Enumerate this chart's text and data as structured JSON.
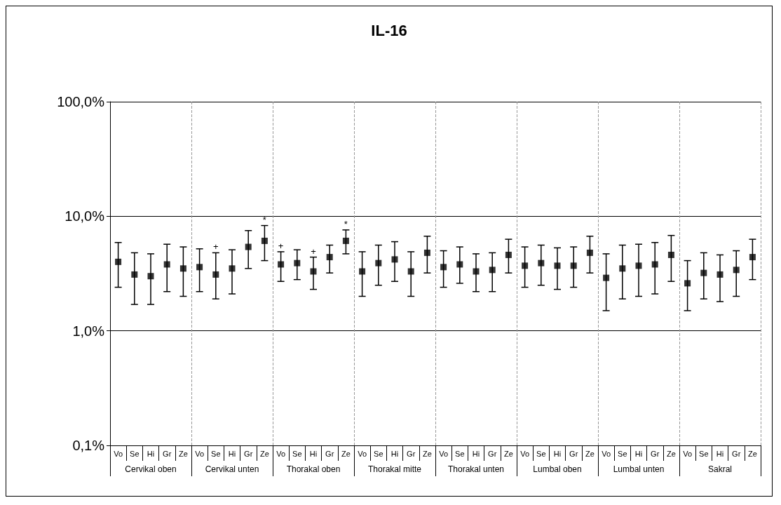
{
  "chart_data": {
    "type": "scatter",
    "title": "IL-16",
    "categories": [
      "Vo",
      "Se",
      "Hi",
      "Gr",
      "Ze",
      "Vo",
      "Se",
      "Hi",
      "Gr",
      "Ze",
      "Vo",
      "Se",
      "Hi",
      "Gr",
      "Ze",
      "Vo",
      "Se",
      "Hi",
      "Gr",
      "Ze",
      "Vo",
      "Se",
      "Hi",
      "Gr",
      "Ze",
      "Vo",
      "Se",
      "Hi",
      "Gr",
      "Ze",
      "Vo",
      "Se",
      "Hi",
      "Gr",
      "Ze",
      "Vo",
      "Se",
      "Hi",
      "Gr",
      "Ze"
    ],
    "annotations": [
      "Cervikal oben",
      "Cervikal unten",
      "Thorakal oben",
      "Thorakal mitte",
      "Thorakal unten",
      "Lumbal oben",
      "Lumbal unten",
      "Sakral"
    ],
    "series": [
      {
        "color": "#000000",
        "values": [
          4.0,
          3.1,
          3.0,
          3.8,
          3.5,
          3.6,
          3.1,
          3.5,
          5.4,
          6.1,
          3.8,
          3.9,
          3.3,
          4.4,
          6.1,
          3.3,
          3.9,
          4.2,
          3.3,
          4.8,
          3.6,
          3.8,
          3.3,
          3.4,
          4.6,
          3.7,
          3.9,
          3.7,
          3.7,
          4.8,
          2.9,
          3.5,
          3.7,
          3.8,
          4.6,
          2.6,
          3.2,
          3.1,
          3.4,
          4.4
        ],
        "errors": [
          [
            2.4,
            5.9
          ],
          [
            1.7,
            4.8
          ],
          [
            1.7,
            4.7
          ],
          [
            2.2,
            5.7
          ],
          [
            2.0,
            5.4
          ],
          [
            2.2,
            5.2
          ],
          [
            1.9,
            4.8
          ],
          [
            2.1,
            5.1
          ],
          [
            3.5,
            7.5
          ],
          [
            4.1,
            8.3
          ],
          [
            2.7,
            4.9
          ],
          [
            2.8,
            5.1
          ],
          [
            2.3,
            4.4
          ],
          [
            3.2,
            5.6
          ],
          [
            4.7,
            7.6
          ],
          [
            2.0,
            4.9
          ],
          [
            2.5,
            5.6
          ],
          [
            2.7,
            6.0
          ],
          [
            2.0,
            4.9
          ],
          [
            3.2,
            6.7
          ],
          [
            2.4,
            5.0
          ],
          [
            2.6,
            5.4
          ],
          [
            2.2,
            4.7
          ],
          [
            2.2,
            4.8
          ],
          [
            3.2,
            6.3
          ],
          [
            2.4,
            5.4
          ],
          [
            2.5,
            5.6
          ],
          [
            2.3,
            5.3
          ],
          [
            2.4,
            5.4
          ],
          [
            3.2,
            6.7
          ],
          [
            1.5,
            4.7
          ],
          [
            1.9,
            5.6
          ],
          [
            2.0,
            5.7
          ],
          [
            2.1,
            5.9
          ],
          [
            2.7,
            6.8
          ],
          [
            1.5,
            4.1
          ],
          [
            1.9,
            4.8
          ],
          [
            1.8,
            4.6
          ],
          [
            2.0,
            5.0
          ],
          [
            2.8,
            6.3
          ]
        ],
        "value_labels": [
          null,
          null,
          null,
          null,
          null,
          null,
          "+",
          null,
          null,
          "*",
          "+",
          null,
          "+",
          null,
          "*",
          null,
          null,
          null,
          null,
          null,
          null,
          null,
          null,
          null,
          null,
          null,
          null,
          null,
          null,
          null,
          null,
          null,
          null,
          null,
          null,
          null,
          null,
          null,
          null,
          null
        ]
      }
    ],
    "ylim": [
      0.1,
      100
    ],
    "yticks": [
      {
        "value": 0.1,
        "label": "0,1%"
      },
      {
        "value": 1,
        "label": "1,0%"
      },
      {
        "value": 10,
        "label": "10,0%"
      },
      {
        "value": 100,
        "label": "100,0%"
      }
    ],
    "log": "y",
    "grid": "y",
    "marker": "square"
  }
}
